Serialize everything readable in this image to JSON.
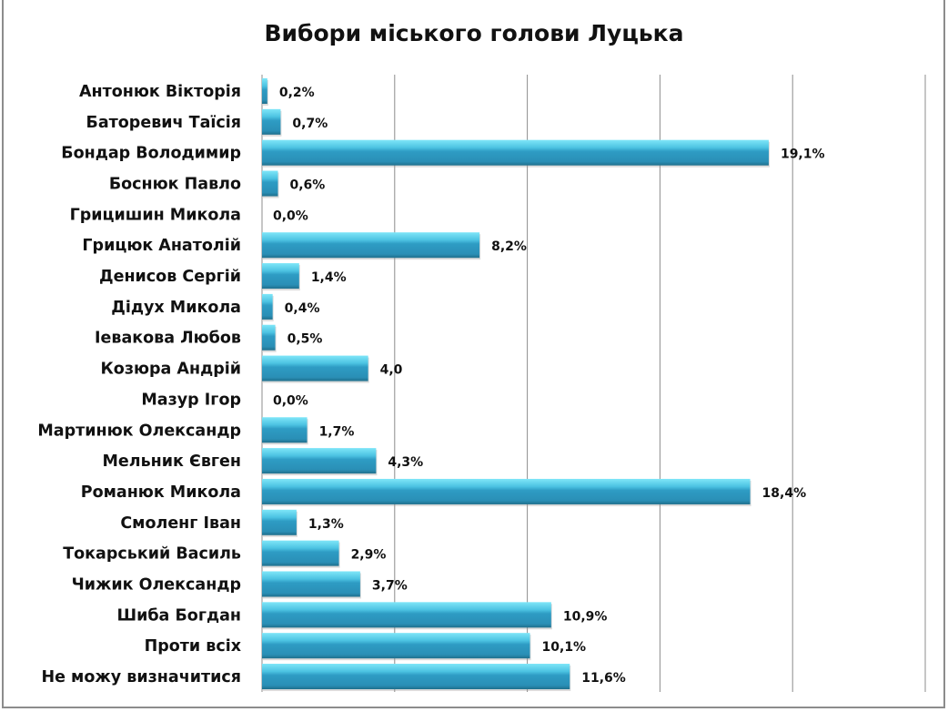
{
  "chart_data": {
    "type": "bar",
    "orientation": "horizontal",
    "title": "Вибори міського голови Луцька",
    "xlabel": "",
    "ylabel": "",
    "xlim": [
      0,
      25
    ],
    "grid": true,
    "legend": "none",
    "categories": [
      "Антонюк Вікторія",
      "Баторевич Таїсія",
      "Бондар Володимир",
      "Боснюк Павло",
      "Грицишин Микола",
      "Грицюк Анатолій",
      "Денисов Сергій",
      "Дідух Микола",
      "Іевакова Любов",
      "Козюра Андрій",
      "Мазур Ігор",
      "Мартинюк Олександр",
      "Мельник Євген",
      "Романюк Микола",
      "Смоленг Іван",
      "Токарський Василь",
      "Чижик Олександр",
      "Шиба Богдан",
      "Проти всіх",
      "Не можу визначитися"
    ],
    "values": [
      0.2,
      0.7,
      19.1,
      0.6,
      0.0,
      8.2,
      1.4,
      0.4,
      0.5,
      4.0,
      0.0,
      1.7,
      4.3,
      18.4,
      1.3,
      2.9,
      3.7,
      10.9,
      10.1,
      11.6
    ],
    "data_labels": [
      "0,2%",
      "0,7%",
      "19,1%",
      "0,6%",
      "0,0%",
      "8,2%",
      "1,4%",
      "0,4%",
      "0,5%",
      "4,0",
      "0,0%",
      "1,7%",
      "4,3%",
      "18,4%",
      "1,3%",
      "2,9%",
      "3,7%",
      "10,9%",
      "10,1%",
      "11,6%"
    ],
    "colors": {
      "bar": "#2e9cc4",
      "bar_light": "#6fdcf2",
      "bar_dark": "#1f6f8c",
      "grid": "#8c8c8c"
    }
  }
}
